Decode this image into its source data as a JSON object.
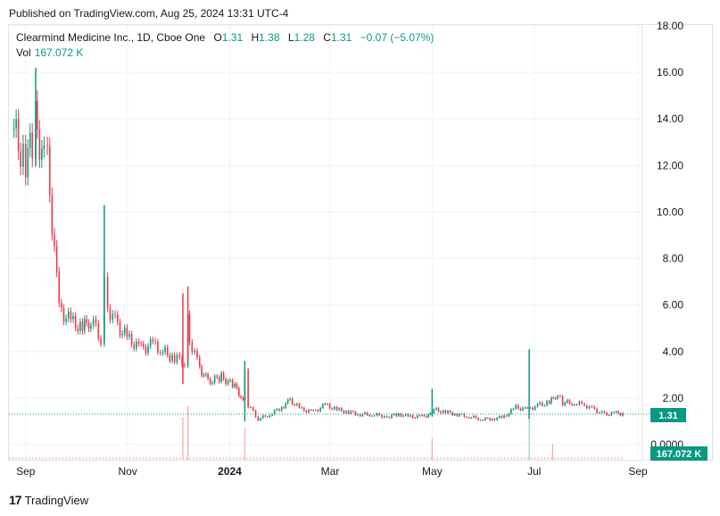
{
  "header": {
    "published": "Published on TradingView.com, Aug 25, 2024 13:31 UTC-4"
  },
  "legend": {
    "symbol": "Clearmind Medicine Inc., 1D, Cboe One",
    "o_label": "O",
    "o_value": "1.31",
    "h_label": "H",
    "h_value": "1.38",
    "l_label": "L",
    "l_value": "1.28",
    "c_label": "C",
    "c_value": "1.31",
    "change": "−0.07 (−5.07%)",
    "vol_label": "Vol",
    "vol_value": "167.072 K"
  },
  "badges": {
    "price": "1.31",
    "volume": "167.072 K"
  },
  "footer": {
    "brand": "TradingView"
  },
  "colors": {
    "up": "#089981",
    "down": "#f23645",
    "grid": "#f0f3fa",
    "price_line": "#089981"
  },
  "chart_data": {
    "type": "candlestick",
    "x_tick_labels": [
      "Sep",
      "Nov",
      "2024",
      "Mar",
      "May",
      "Jul",
      "Sep"
    ],
    "y_tick_labels": [
      "18.00",
      "16.00",
      "14.00",
      "12.00",
      "10.00",
      "8.00",
      "6.00",
      "4.00",
      "2.00",
      "0.0000"
    ],
    "ylim": [
      0,
      18
    ],
    "last_price": 1.31,
    "series": [
      {
        "name": "Price",
        "points": [
          {
            "t": "2023-08-25",
            "c": 13.6
          },
          {
            "t": "2023-08-29",
            "c": 12.4
          },
          {
            "t": "2023-09-01",
            "c": 12.2
          },
          {
            "t": "2023-09-05",
            "c": 13.0
          },
          {
            "t": "2023-09-07",
            "c": 15.2
          },
          {
            "t": "2023-09-08",
            "c": 13.4
          },
          {
            "t": "2023-09-12",
            "c": 12.3
          },
          {
            "t": "2023-09-14",
            "c": 12.1
          },
          {
            "t": "2023-09-21",
            "c": 5.8
          },
          {
            "t": "2023-09-28",
            "c": 5.3
          },
          {
            "t": "2023-10-05",
            "c": 5.0
          },
          {
            "t": "2023-10-10",
            "c": 5.4
          },
          {
            "t": "2023-10-16",
            "c": 4.6
          },
          {
            "t": "2023-10-18",
            "c": 7.5
          },
          {
            "t": "2023-10-20",
            "c": 5.9
          },
          {
            "t": "2023-10-26",
            "c": 5.1
          },
          {
            "t": "2023-11-02",
            "c": 4.5
          },
          {
            "t": "2023-11-09",
            "c": 4.1
          },
          {
            "t": "2023-11-16",
            "c": 4.3
          },
          {
            "t": "2023-11-22",
            "c": 4.0
          },
          {
            "t": "2023-11-29",
            "c": 3.7
          },
          {
            "t": "2023-12-05",
            "c": 3.6
          },
          {
            "t": "2023-12-07",
            "c": 5.9
          },
          {
            "t": "2023-12-08",
            "c": 4.5
          },
          {
            "t": "2023-12-14",
            "c": 3.3
          },
          {
            "t": "2023-12-19",
            "c": 2.7
          },
          {
            "t": "2023-12-27",
            "c": 2.9
          },
          {
            "t": "2024-01-04",
            "c": 2.5
          },
          {
            "t": "2024-01-09",
            "c": 1.9
          },
          {
            "t": "2024-01-10",
            "c": 3.3
          },
          {
            "t": "2024-01-12",
            "c": 1.7
          },
          {
            "t": "2024-01-18",
            "c": 1.1
          },
          {
            "t": "2024-01-25",
            "c": 1.3
          },
          {
            "t": "2024-02-01",
            "c": 1.6
          },
          {
            "t": "2024-02-06",
            "c": 1.9
          },
          {
            "t": "2024-02-13",
            "c": 1.5
          },
          {
            "t": "2024-02-20",
            "c": 1.4
          },
          {
            "t": "2024-02-27",
            "c": 1.7
          },
          {
            "t": "2024-03-05",
            "c": 1.5
          },
          {
            "t": "2024-03-12",
            "c": 1.4
          },
          {
            "t": "2024-03-19",
            "c": 1.3
          },
          {
            "t": "2024-03-26",
            "c": 1.3
          },
          {
            "t": "2024-04-04",
            "c": 1.2
          },
          {
            "t": "2024-04-11",
            "c": 1.3
          },
          {
            "t": "2024-04-18",
            "c": 1.2
          },
          {
            "t": "2024-04-25",
            "c": 1.2
          },
          {
            "t": "2024-04-30",
            "c": 1.3
          },
          {
            "t": "2024-05-02",
            "c": 1.5
          },
          {
            "t": "2024-05-09",
            "c": 1.4
          },
          {
            "t": "2024-05-16",
            "c": 1.3
          },
          {
            "t": "2024-05-23",
            "c": 1.2
          },
          {
            "t": "2024-05-30",
            "c": 1.1
          },
          {
            "t": "2024-06-06",
            "c": 1.1
          },
          {
            "t": "2024-06-13",
            "c": 1.2
          },
          {
            "t": "2024-06-20",
            "c": 1.6
          },
          {
            "t": "2024-06-27",
            "c": 1.5
          },
          {
            "t": "2024-07-03",
            "c": 1.7
          },
          {
            "t": "2024-07-10",
            "c": 1.8
          },
          {
            "t": "2024-07-15",
            "c": 2.2
          },
          {
            "t": "2024-07-18",
            "c": 1.8
          },
          {
            "t": "2024-07-25",
            "c": 1.8
          },
          {
            "t": "2024-07-31",
            "c": 1.7
          },
          {
            "t": "2024-08-06",
            "c": 1.5
          },
          {
            "t": "2024-08-12",
            "c": 1.3
          },
          {
            "t": "2024-08-19",
            "c": 1.35
          },
          {
            "t": "2024-08-23",
            "c": 1.31
          }
        ],
        "spikes": [
          {
            "t": "2023-09-07",
            "high": 16.2,
            "low": 12.0
          },
          {
            "t": "2023-10-18",
            "high": 10.3,
            "low": 4.5
          },
          {
            "t": "2023-12-04",
            "high": 6.5,
            "low": 2.6
          },
          {
            "t": "2023-12-07",
            "high": 6.8,
            "low": 3.6
          },
          {
            "t": "2024-01-10",
            "high": 3.6,
            "low": 1.0
          },
          {
            "t": "2024-05-01",
            "high": 2.4,
            "low": 1.2
          },
          {
            "t": "2024-06-28",
            "high": 4.1,
            "low": 1.1
          }
        ]
      }
    ],
    "volume_spikes": [
      {
        "t": "2023-12-04",
        "v": 0.8
      },
      {
        "t": "2023-12-07",
        "v": 1.0
      },
      {
        "t": "2024-01-10",
        "v": 0.6
      },
      {
        "t": "2024-05-01",
        "v": 0.4
      },
      {
        "t": "2024-06-28",
        "v": 1.0
      },
      {
        "t": "2024-07-12",
        "v": 0.3
      }
    ]
  }
}
